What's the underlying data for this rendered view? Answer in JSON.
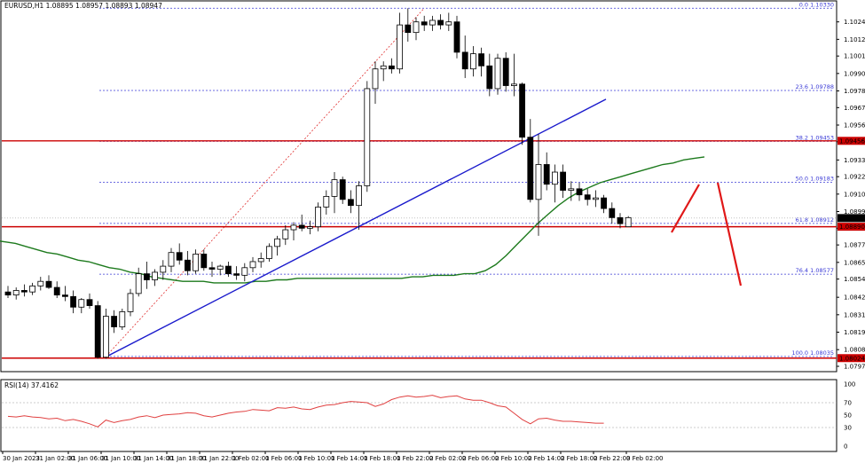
{
  "chart_data": {
    "type": "candlestick",
    "symbol_header": "EURUSD,H1  1.08895 1.08957 1.08893 1.08947",
    "price_axis": {
      "range": [
        1.0797,
        1.10355
      ],
      "ticks": [
        "1.10240",
        "1.10125",
        "1.10015",
        "1.09900",
        "1.09785",
        "1.09675",
        "1.09560",
        "1.09450",
        "1.09330",
        "1.09220",
        "1.09105",
        "1.08990",
        "1.08880",
        "1.08770",
        "1.08655",
        "1.08545",
        "1.08425",
        "1.08310",
        "1.08195",
        "1.08080",
        "1.07970"
      ]
    },
    "time_axis": [
      "30 Jan 2023",
      "31 Jan 02:00",
      "31 Jan 06:00",
      "31 Jan 10:00",
      "31 Jan 14:00",
      "31 Jan 18:00",
      "31 Jan 22:00",
      "1 Feb 02:00",
      "1 Feb 06:00",
      "1 Feb 10:00",
      "1 Feb 14:00",
      "1 Feb 18:00",
      "1 Feb 22:00",
      "2 Feb 02:00",
      "2 Feb 06:00",
      "2 Feb 10:00",
      "2 Feb 14:00",
      "2 Feb 18:00",
      "2 Feb 22:00",
      "3 Feb 02:00"
    ],
    "price_labels": {
      "current": "1.08947",
      "resistance": "1.09456",
      "support_upper": "1.08890",
      "support_lower": "1.08024"
    },
    "horizontal_lines": {
      "resistance": 1.09456,
      "support_upper": 1.0889,
      "support_lower": 1.08024
    },
    "fibonacci": [
      {
        "label": "0.0 1.10330",
        "value": 1.1033
      },
      {
        "label": "23.6 1.09788",
        "value": 1.09788
      },
      {
        "label": "38.2 1.09453",
        "value": 1.09453
      },
      {
        "label": "50.0 1.09183",
        "value": 1.09183
      },
      {
        "label": "61.8 1.08912",
        "value": 1.08912
      },
      {
        "label": "76.4 1.08577",
        "value": 1.08577
      },
      {
        "label": "100.0 1.08035",
        "value": 1.08035
      }
    ],
    "candles": [
      [
        1.0846,
        1.085,
        1.0842,
        1.0844
      ],
      [
        1.0844,
        1.0849,
        1.0841,
        1.0847
      ],
      [
        1.0847,
        1.0851,
        1.0843,
        1.0846
      ],
      [
        1.0846,
        1.0852,
        1.0844,
        1.085
      ],
      [
        1.085,
        1.0856,
        1.0847,
        1.0853
      ],
      [
        1.0853,
        1.0857,
        1.0848,
        1.0849
      ],
      [
        1.0849,
        1.0853,
        1.0842,
        1.0844
      ],
      [
        1.0844,
        1.085,
        1.084,
        1.0843
      ],
      [
        1.0843,
        1.0847,
        1.0832,
        1.0836
      ],
      [
        1.0836,
        1.0842,
        1.0832,
        1.0841
      ],
      [
        1.0841,
        1.0845,
        1.0835,
        1.0837
      ],
      [
        1.0837,
        1.084,
        1.0802,
        1.0803
      ],
      [
        1.0803,
        1.0835,
        1.0802,
        1.083
      ],
      [
        1.083,
        1.0834,
        1.0819,
        1.0823
      ],
      [
        1.0823,
        1.0835,
        1.0821,
        1.0833
      ],
      [
        1.0833,
        1.0848,
        1.083,
        1.0845
      ],
      [
        1.0845,
        1.0862,
        1.0843,
        1.0858
      ],
      [
        1.0858,
        1.0866,
        1.0848,
        1.0854
      ],
      [
        1.0854,
        1.0861,
        1.085,
        1.0859
      ],
      [
        1.0859,
        1.0867,
        1.0854,
        1.0863
      ],
      [
        1.0863,
        1.0875,
        1.0859,
        1.0872
      ],
      [
        1.0872,
        1.0878,
        1.0864,
        1.0867
      ],
      [
        1.0867,
        1.0873,
        1.0857,
        1.086
      ],
      [
        1.086,
        1.0874,
        1.0858,
        1.0871
      ],
      [
        1.0871,
        1.0874,
        1.086,
        1.0862
      ],
      [
        1.0862,
        1.0866,
        1.0856,
        1.0861
      ],
      [
        1.0861,
        1.0864,
        1.0857,
        1.0863
      ],
      [
        1.0863,
        1.0866,
        1.0856,
        1.0858
      ],
      [
        1.0858,
        1.0863,
        1.0854,
        1.0857
      ],
      [
        1.0857,
        1.0865,
        1.0853,
        1.0862
      ],
      [
        1.0862,
        1.0869,
        1.0859,
        1.0866
      ],
      [
        1.0866,
        1.0872,
        1.0862,
        1.0868
      ],
      [
        1.0868,
        1.0878,
        1.0866,
        1.0876
      ],
      [
        1.0876,
        1.0883,
        1.087,
        1.0881
      ],
      [
        1.0881,
        1.089,
        1.0877,
        1.0887
      ],
      [
        1.0887,
        1.0892,
        1.088,
        1.089
      ],
      [
        1.089,
        1.0897,
        1.0886,
        1.0888
      ],
      [
        1.0888,
        1.0893,
        1.0884,
        1.0889
      ],
      [
        1.0889,
        1.0905,
        1.0886,
        1.0902
      ],
      [
        1.0902,
        1.0913,
        1.0897,
        1.0909
      ],
      [
        1.0909,
        1.0925,
        1.0898,
        1.092
      ],
      [
        1.092,
        1.0922,
        1.0904,
        1.0907
      ],
      [
        1.0907,
        1.0913,
        1.0898,
        1.0903
      ],
      [
        1.0903,
        1.0919,
        1.0887,
        1.0916
      ],
      [
        1.0916,
        1.0985,
        1.0912,
        1.098
      ],
      [
        1.098,
        1.0998,
        1.097,
        1.0993
      ],
      [
        1.0993,
        1.0998,
        1.0985,
        1.0995
      ],
      [
        1.0995,
        1.1,
        1.099,
        1.0993
      ],
      [
        1.0993,
        1.103,
        1.099,
        1.1022
      ],
      [
        1.1022,
        1.1033,
        1.1011,
        1.1017
      ],
      [
        1.1017,
        1.1027,
        1.1012,
        1.1024
      ],
      [
        1.1024,
        1.1028,
        1.1018,
        1.1022
      ],
      [
        1.1022,
        1.1028,
        1.1018,
        1.1025
      ],
      [
        1.1025,
        1.1029,
        1.1019,
        1.1022
      ],
      [
        1.1022,
        1.103,
        1.1018,
        1.1024
      ],
      [
        1.1024,
        1.1028,
        1.1,
        1.1004
      ],
      [
        1.1004,
        1.1015,
        1.0987,
        1.0993
      ],
      [
        1.0993,
        1.1008,
        1.0988,
        1.1003
      ],
      [
        1.1003,
        1.1007,
        1.0988,
        1.0995
      ],
      [
        1.0995,
        1.1003,
        1.0975,
        1.098
      ],
      [
        1.098,
        1.1003,
        1.0976,
        1.1
      ],
      [
        1.1,
        1.1004,
        1.0978,
        1.0982
      ],
      [
        1.0982,
        1.1003,
        1.0975,
        1.0983
      ],
      [
        1.0983,
        1.0984,
        1.0943,
        1.0948
      ],
      [
        1.0948,
        1.096,
        1.0905,
        1.0907
      ],
      [
        1.0907,
        1.095,
        1.0883,
        1.093
      ],
      [
        1.093,
        1.0938,
        1.0913,
        1.0917
      ],
      [
        1.0917,
        1.093,
        1.0905,
        1.0925
      ],
      [
        1.0925,
        1.093,
        1.0908,
        1.0913
      ],
      [
        1.0913,
        1.0919,
        1.0906,
        1.0914
      ],
      [
        1.0914,
        1.0918,
        1.0906,
        1.091
      ],
      [
        1.091,
        1.0914,
        1.0903,
        1.0907
      ],
      [
        1.0907,
        1.0913,
        1.0902,
        1.0908
      ],
      [
        1.0908,
        1.091,
        1.0898,
        1.0901
      ],
      [
        1.0901,
        1.0905,
        1.0891,
        1.0895
      ],
      [
        1.0895,
        1.0898,
        1.0888,
        1.0891
      ],
      [
        1.0889,
        1.0896,
        1.0889,
        1.0895
      ]
    ],
    "moving_average": [
      1.088,
      1.0879,
      1.0878,
      1.0876,
      1.0874,
      1.0872,
      1.0871,
      1.0869,
      1.0867,
      1.0866,
      1.0864,
      1.0862,
      1.0861,
      1.0859,
      1.0858,
      1.0856,
      1.0855,
      1.0854,
      1.0853,
      1.0853,
      1.0853,
      1.0852,
      1.0852,
      1.0852,
      1.0852,
      1.0853,
      1.0853,
      1.0854,
      1.0854,
      1.0855,
      1.0855,
      1.0855,
      1.0855,
      1.0855,
      1.0855,
      1.0855,
      1.0855,
      1.0855,
      1.0855,
      1.0855,
      1.0856,
      1.0856,
      1.0857,
      1.0857,
      1.0857,
      1.0858,
      1.0858,
      1.086,
      1.0864,
      1.087,
      1.0877,
      1.0884,
      1.0891,
      1.0897,
      1.0903,
      1.0908,
      1.0912,
      1.0915,
      1.0918,
      1.092,
      1.0922,
      1.0924,
      1.0926,
      1.0928,
      1.093,
      1.0931,
      1.0933,
      1.0934,
      1.0935
    ],
    "rsi": {
      "label": "RSI(14) 37.4162",
      "ticks": [
        "100",
        "70",
        "50",
        "30",
        "0"
      ],
      "values": [
        48,
        47,
        49,
        47,
        46,
        44,
        45,
        41,
        43,
        40,
        36,
        31,
        42,
        38,
        41,
        43,
        47,
        49,
        46,
        50,
        51,
        52,
        54,
        53,
        49,
        47,
        50,
        53,
        55,
        56,
        59,
        58,
        57,
        62,
        61,
        63,
        60,
        59,
        63,
        66,
        67,
        70,
        72,
        71,
        70,
        64,
        68,
        75,
        79,
        81,
        79,
        80,
        82,
        78,
        80,
        81,
        76,
        74,
        74,
        70,
        65,
        63,
        53,
        43,
        36,
        44,
        45,
        42,
        40,
        40,
        39,
        38,
        37,
        37
      ]
    },
    "trend_line": {
      "from": [
        1.0804,
        0
      ],
      "to": [
        1.0973,
        1
      ]
    },
    "projection": "down"
  }
}
